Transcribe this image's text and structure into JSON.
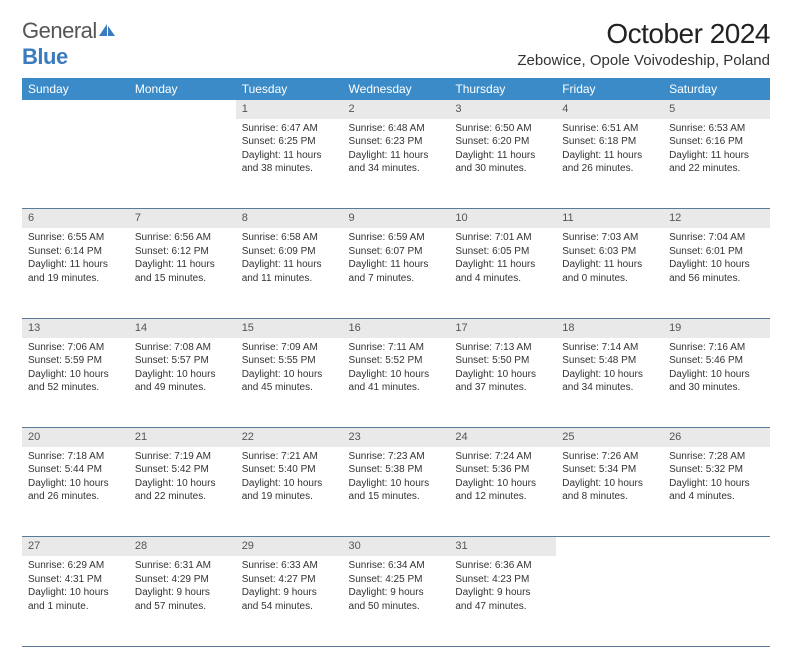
{
  "brand": {
    "name_part1": "General",
    "name_part2": "Blue"
  },
  "title": "October 2024",
  "location": "Zebowice, Opole Voivodeship, Poland",
  "colors": {
    "header_bg": "#3b8bc9",
    "header_text": "#ffffff",
    "daynum_bg": "#e9e9e9",
    "border": "#5a7a9a",
    "brand_blue": "#3b7bbf"
  },
  "day_headers": [
    "Sunday",
    "Monday",
    "Tuesday",
    "Wednesday",
    "Thursday",
    "Friday",
    "Saturday"
  ],
  "weeks": [
    [
      null,
      null,
      {
        "n": "1",
        "sr": "Sunrise: 6:47 AM",
        "ss": "Sunset: 6:25 PM",
        "dl1": "Daylight: 11 hours",
        "dl2": "and 38 minutes."
      },
      {
        "n": "2",
        "sr": "Sunrise: 6:48 AM",
        "ss": "Sunset: 6:23 PM",
        "dl1": "Daylight: 11 hours",
        "dl2": "and 34 minutes."
      },
      {
        "n": "3",
        "sr": "Sunrise: 6:50 AM",
        "ss": "Sunset: 6:20 PM",
        "dl1": "Daylight: 11 hours",
        "dl2": "and 30 minutes."
      },
      {
        "n": "4",
        "sr": "Sunrise: 6:51 AM",
        "ss": "Sunset: 6:18 PM",
        "dl1": "Daylight: 11 hours",
        "dl2": "and 26 minutes."
      },
      {
        "n": "5",
        "sr": "Sunrise: 6:53 AM",
        "ss": "Sunset: 6:16 PM",
        "dl1": "Daylight: 11 hours",
        "dl2": "and 22 minutes."
      }
    ],
    [
      {
        "n": "6",
        "sr": "Sunrise: 6:55 AM",
        "ss": "Sunset: 6:14 PM",
        "dl1": "Daylight: 11 hours",
        "dl2": "and 19 minutes."
      },
      {
        "n": "7",
        "sr": "Sunrise: 6:56 AM",
        "ss": "Sunset: 6:12 PM",
        "dl1": "Daylight: 11 hours",
        "dl2": "and 15 minutes."
      },
      {
        "n": "8",
        "sr": "Sunrise: 6:58 AM",
        "ss": "Sunset: 6:09 PM",
        "dl1": "Daylight: 11 hours",
        "dl2": "and 11 minutes."
      },
      {
        "n": "9",
        "sr": "Sunrise: 6:59 AM",
        "ss": "Sunset: 6:07 PM",
        "dl1": "Daylight: 11 hours",
        "dl2": "and 7 minutes."
      },
      {
        "n": "10",
        "sr": "Sunrise: 7:01 AM",
        "ss": "Sunset: 6:05 PM",
        "dl1": "Daylight: 11 hours",
        "dl2": "and 4 minutes."
      },
      {
        "n": "11",
        "sr": "Sunrise: 7:03 AM",
        "ss": "Sunset: 6:03 PM",
        "dl1": "Daylight: 11 hours",
        "dl2": "and 0 minutes."
      },
      {
        "n": "12",
        "sr": "Sunrise: 7:04 AM",
        "ss": "Sunset: 6:01 PM",
        "dl1": "Daylight: 10 hours",
        "dl2": "and 56 minutes."
      }
    ],
    [
      {
        "n": "13",
        "sr": "Sunrise: 7:06 AM",
        "ss": "Sunset: 5:59 PM",
        "dl1": "Daylight: 10 hours",
        "dl2": "and 52 minutes."
      },
      {
        "n": "14",
        "sr": "Sunrise: 7:08 AM",
        "ss": "Sunset: 5:57 PM",
        "dl1": "Daylight: 10 hours",
        "dl2": "and 49 minutes."
      },
      {
        "n": "15",
        "sr": "Sunrise: 7:09 AM",
        "ss": "Sunset: 5:55 PM",
        "dl1": "Daylight: 10 hours",
        "dl2": "and 45 minutes."
      },
      {
        "n": "16",
        "sr": "Sunrise: 7:11 AM",
        "ss": "Sunset: 5:52 PM",
        "dl1": "Daylight: 10 hours",
        "dl2": "and 41 minutes."
      },
      {
        "n": "17",
        "sr": "Sunrise: 7:13 AM",
        "ss": "Sunset: 5:50 PM",
        "dl1": "Daylight: 10 hours",
        "dl2": "and 37 minutes."
      },
      {
        "n": "18",
        "sr": "Sunrise: 7:14 AM",
        "ss": "Sunset: 5:48 PM",
        "dl1": "Daylight: 10 hours",
        "dl2": "and 34 minutes."
      },
      {
        "n": "19",
        "sr": "Sunrise: 7:16 AM",
        "ss": "Sunset: 5:46 PM",
        "dl1": "Daylight: 10 hours",
        "dl2": "and 30 minutes."
      }
    ],
    [
      {
        "n": "20",
        "sr": "Sunrise: 7:18 AM",
        "ss": "Sunset: 5:44 PM",
        "dl1": "Daylight: 10 hours",
        "dl2": "and 26 minutes."
      },
      {
        "n": "21",
        "sr": "Sunrise: 7:19 AM",
        "ss": "Sunset: 5:42 PM",
        "dl1": "Daylight: 10 hours",
        "dl2": "and 22 minutes."
      },
      {
        "n": "22",
        "sr": "Sunrise: 7:21 AM",
        "ss": "Sunset: 5:40 PM",
        "dl1": "Daylight: 10 hours",
        "dl2": "and 19 minutes."
      },
      {
        "n": "23",
        "sr": "Sunrise: 7:23 AM",
        "ss": "Sunset: 5:38 PM",
        "dl1": "Daylight: 10 hours",
        "dl2": "and 15 minutes."
      },
      {
        "n": "24",
        "sr": "Sunrise: 7:24 AM",
        "ss": "Sunset: 5:36 PM",
        "dl1": "Daylight: 10 hours",
        "dl2": "and 12 minutes."
      },
      {
        "n": "25",
        "sr": "Sunrise: 7:26 AM",
        "ss": "Sunset: 5:34 PM",
        "dl1": "Daylight: 10 hours",
        "dl2": "and 8 minutes."
      },
      {
        "n": "26",
        "sr": "Sunrise: 7:28 AM",
        "ss": "Sunset: 5:32 PM",
        "dl1": "Daylight: 10 hours",
        "dl2": "and 4 minutes."
      }
    ],
    [
      {
        "n": "27",
        "sr": "Sunrise: 6:29 AM",
        "ss": "Sunset: 4:31 PM",
        "dl1": "Daylight: 10 hours",
        "dl2": "and 1 minute."
      },
      {
        "n": "28",
        "sr": "Sunrise: 6:31 AM",
        "ss": "Sunset: 4:29 PM",
        "dl1": "Daylight: 9 hours",
        "dl2": "and 57 minutes."
      },
      {
        "n": "29",
        "sr": "Sunrise: 6:33 AM",
        "ss": "Sunset: 4:27 PM",
        "dl1": "Daylight: 9 hours",
        "dl2": "and 54 minutes."
      },
      {
        "n": "30",
        "sr": "Sunrise: 6:34 AM",
        "ss": "Sunset: 4:25 PM",
        "dl1": "Daylight: 9 hours",
        "dl2": "and 50 minutes."
      },
      {
        "n": "31",
        "sr": "Sunrise: 6:36 AM",
        "ss": "Sunset: 4:23 PM",
        "dl1": "Daylight: 9 hours",
        "dl2": "and 47 minutes."
      },
      null,
      null
    ]
  ]
}
